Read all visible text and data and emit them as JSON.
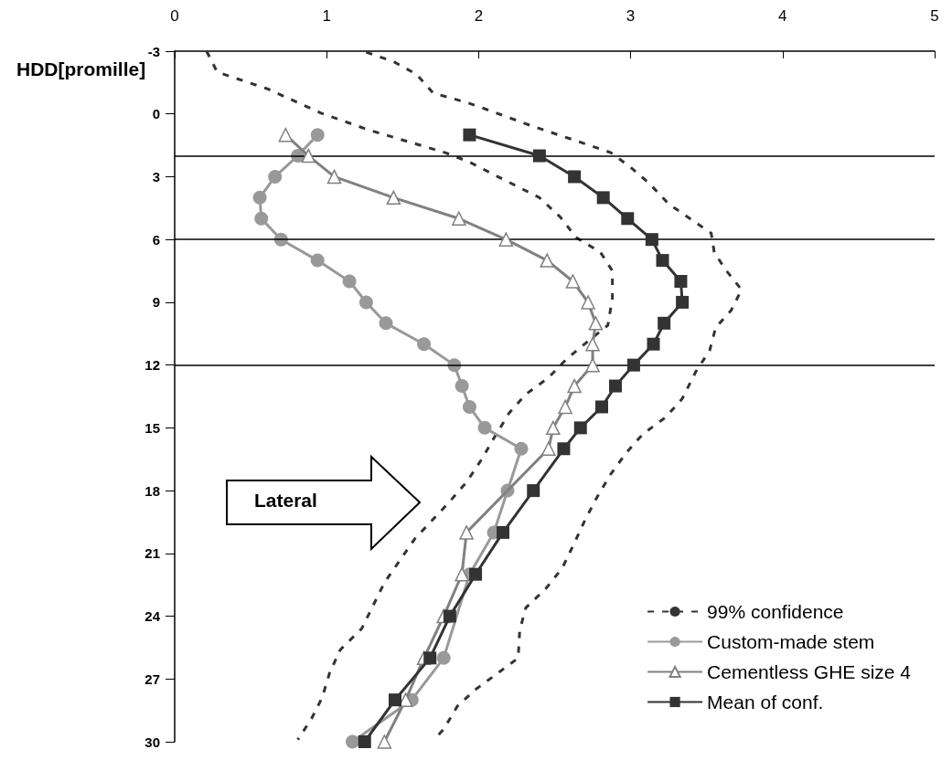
{
  "chart_data": {
    "type": "line",
    "ylabel": "HDD[promille]",
    "xlim": [
      0,
      5
    ],
    "xticks": [
      0,
      1,
      2,
      3,
      4,
      5
    ],
    "ylim": [
      30,
      -3
    ],
    "yticks": [
      -3,
      0,
      3,
      6,
      9,
      12,
      15,
      18,
      21,
      24,
      27,
      30
    ],
    "grid": false,
    "legend": "bottom right",
    "annotations": [
      "Lateral"
    ],
    "ref_lines": [
      {
        "axis": "y",
        "value": 2,
        "color": "#000000"
      },
      {
        "axis": "y",
        "value": 6,
        "color": "#000000"
      },
      {
        "axis": "y",
        "value": 12,
        "color": "#000000"
      }
    ],
    "series": [
      {
        "name": "99% confidence",
        "color": "#333333",
        "marker": "none",
        "line_style": "dashed",
        "x": [
          0.21,
          0.28,
          0.61,
          0.96,
          1.27,
          1.78,
          1.94,
          2.1,
          2.4,
          2.54,
          2.64,
          2.8,
          2.88,
          2.88,
          2.85,
          2.73,
          2.58,
          2.46,
          2.31,
          2.2,
          2.1,
          2.02,
          1.92,
          1.8,
          1.58,
          1.38,
          1.23,
          1.09,
          1.02,
          0.97,
          0.9,
          0.81,
          null,
          1.26,
          1.44,
          1.59,
          1.7,
          1.92,
          2.02,
          2.36,
          2.69,
          2.87,
          3.0,
          3.12,
          3.25,
          3.39,
          3.53,
          3.55,
          3.62,
          3.73,
          3.66,
          3.56,
          3.52,
          3.43,
          3.34,
          3.23,
          3.08,
          2.97,
          2.87,
          2.78,
          2.7,
          2.63,
          2.55,
          2.44,
          2.31,
          2.27,
          2.26,
          2.13,
          1.98,
          1.86,
          1.77,
          1.72
        ],
        "values": [
          -3,
          -2,
          -1.2,
          -0.05,
          0.75,
          1.85,
          2.3,
          2.9,
          4.0,
          4.95,
          5.9,
          6.6,
          7.5,
          8.8,
          10.1,
          10.8,
          11.7,
          12.6,
          13.4,
          14.3,
          15.5,
          16.5,
          17.6,
          18.6,
          20.3,
          22.4,
          24.6,
          25.6,
          26.7,
          27.9,
          28.9,
          29.9,
          null,
          -2.95,
          -2.5,
          -1.9,
          -1.0,
          -0.55,
          -0.3,
          0.6,
          1.4,
          1.85,
          2.55,
          3.3,
          4.3,
          5.0,
          5.7,
          6.6,
          7.4,
          8.4,
          9.4,
          10.2,
          11.3,
          12.3,
          13.6,
          14.5,
          15.3,
          16.2,
          17.2,
          18.3,
          19.4,
          20.5,
          21.7,
          22.7,
          23.6,
          24.7,
          26.0,
          26.7,
          27.5,
          28.3,
          29.4,
          29.8
        ]
      },
      {
        "name": "Custom-made stem",
        "color": "#999999",
        "marker": "circle",
        "line_style": "solid",
        "x": [
          0.94,
          0.81,
          0.66,
          0.56,
          0.57,
          0.7,
          0.94,
          1.15,
          1.26,
          1.39,
          1.64,
          1.84,
          1.89,
          1.94,
          2.04,
          2.28,
          2.19,
          2.1,
          1.94,
          null,
          1.77,
          1.56,
          1.17
        ],
        "values": [
          1,
          2,
          3,
          4,
          5,
          6,
          7,
          8,
          9,
          10,
          11,
          12,
          13,
          14,
          15,
          16,
          18,
          20,
          22,
          null,
          26,
          28,
          30
        ]
      },
      {
        "name": "Cementless GHE size 4",
        "color": "#808080",
        "marker": "triangle",
        "line_style": "solid",
        "x": [
          0.73,
          0.88,
          1.05,
          1.44,
          1.87,
          2.18,
          2.45,
          2.62,
          2.72,
          2.77,
          2.75,
          2.75,
          2.63,
          2.57,
          2.49,
          2.46,
          null,
          1.92,
          1.89,
          1.77,
          1.64,
          1.52,
          1.38
        ],
        "values": [
          1,
          2,
          3,
          4,
          5,
          6,
          7,
          8,
          9,
          10,
          11,
          12,
          13,
          14,
          15,
          16,
          null,
          20,
          22,
          24,
          26,
          28,
          30
        ]
      },
      {
        "name": "Mean of conf.",
        "color": "#333333",
        "marker": "square",
        "line_style": "solid",
        "x": [
          1.94,
          2.4,
          2.63,
          2.82,
          2.98,
          3.14,
          3.21,
          3.33,
          3.34,
          3.22,
          3.15,
          3.02,
          2.9,
          2.81,
          2.67,
          2.56,
          2.36,
          2.16,
          1.98,
          1.81,
          1.68,
          1.45,
          1.25
        ],
        "values": [
          1,
          2,
          3,
          4,
          5,
          6,
          7,
          8,
          9,
          10,
          11,
          12,
          13,
          14,
          15,
          16,
          18,
          20,
          22,
          24,
          26,
          28,
          30
        ]
      }
    ]
  }
}
